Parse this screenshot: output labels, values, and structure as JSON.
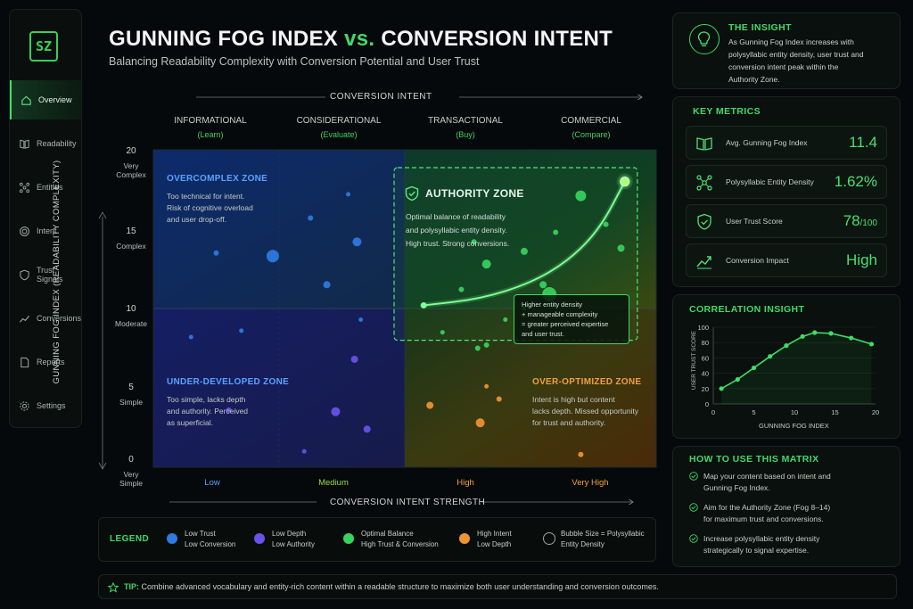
{
  "title": {
    "part1": "GUNNING FOG INDEX",
    "vs": "vs.",
    "part2": "CONVERSION INTENT"
  },
  "subtitle": "Balancing Readability Complexity with Conversion Potential and User Trust",
  "sidebar": {
    "logo": "SZ",
    "items": [
      {
        "label": "Overview",
        "icon": "home-icon",
        "active": true
      },
      {
        "label": "Readability",
        "icon": "book-icon"
      },
      {
        "label": "Entities",
        "icon": "nodes-icon"
      },
      {
        "label": "Intent",
        "icon": "target-icon"
      },
      {
        "label": "Trust Signals",
        "icon": "shield-icon"
      },
      {
        "label": "Conversions",
        "icon": "trend-icon"
      },
      {
        "label": "Reports",
        "icon": "document-icon"
      },
      {
        "label": "Settings",
        "icon": "gear-icon"
      }
    ]
  },
  "colors": {
    "accent": "#3fdc68",
    "blue": "#2e6fd6",
    "purple": "#6a4fe0",
    "green": "#39d35f",
    "orange": "#e58a2d"
  },
  "chart_data": {
    "type": "scatter",
    "x_title": "CONVERSION INTENT",
    "xlabel": "CONVERSION INTENT STRENGTH",
    "ylabel": "GUNNING FOG INDEX (READABILITY COMPLEXITY)",
    "intent_stages": [
      {
        "name": "INFORMATIONAL",
        "sub": "(Learn)"
      },
      {
        "name": "CONSIDERATIONAL",
        "sub": "(Evaluate)"
      },
      {
        "name": "TRANSACTIONAL",
        "sub": "(Buy)"
      },
      {
        "name": "COMMERCIAL",
        "sub": "(Compare)"
      }
    ],
    "x_ticks": [
      "Low",
      "Medium",
      "High",
      "Very High"
    ],
    "y_ticks": [
      {
        "value": 20,
        "label": "20",
        "sub": "Very\nComplex"
      },
      {
        "value": 15,
        "label": "15",
        "sub": "Complex"
      },
      {
        "value": 10,
        "label": "10",
        "sub": "Moderate"
      },
      {
        "value": 5,
        "label": "5",
        "sub": "Simple"
      },
      {
        "value": 0,
        "label": "0",
        "sub": "Very\nSimple"
      }
    ],
    "ylim": [
      0,
      20
    ],
    "xlim": [
      0,
      4
    ],
    "zones": {
      "overcomplex": {
        "title": "OVERCOMPLEX ZONE",
        "text": [
          "Too technical for intent.",
          "Risk of cognitive overload",
          "and user drop-off."
        ]
      },
      "authority": {
        "title": "AUTHORITY ZONE",
        "text": [
          "Optimal balance of readability",
          "and polysyllabic entity density.",
          "High trust. Strong conversions."
        ]
      },
      "underdeveloped": {
        "title": "UNDER-DEVELOPED ZONE",
        "text": [
          "Too simple, lacks depth",
          "and authority. Perceived",
          "as superficial."
        ]
      },
      "overoptimized": {
        "title": "OVER-OPTIMIZED ZONE",
        "text": [
          "Intent is high but content",
          "lacks depth. Missed opportunity",
          "for trust and authority."
        ]
      }
    },
    "callout": [
      "Higher entity density",
      "+ manageable complexity",
      "= greater perceived expertise",
      "and user trust."
    ],
    "trend_curve": [
      [
        2.15,
        10.2
      ],
      [
        2.6,
        10.6
      ],
      [
        3.0,
        11.6
      ],
      [
        3.3,
        13.0
      ],
      [
        3.55,
        15.0
      ],
      [
        3.75,
        18.0
      ]
    ],
    "points": [
      {
        "x": 0.5,
        "y": 13.5,
        "r": 3,
        "c": "blue"
      },
      {
        "x": 0.95,
        "y": 13.3,
        "r": 7,
        "c": "blue"
      },
      {
        "x": 1.25,
        "y": 15.7,
        "r": 3,
        "c": "blue"
      },
      {
        "x": 1.38,
        "y": 11.5,
        "r": 4,
        "c": "blue"
      },
      {
        "x": 1.55,
        "y": 17.2,
        "r": 2.5,
        "c": "blue"
      },
      {
        "x": 1.62,
        "y": 14.2,
        "r": 5,
        "c": "blue"
      },
      {
        "x": 0.3,
        "y": 8.2,
        "r": 2.5,
        "c": "blue"
      },
      {
        "x": 0.7,
        "y": 8.6,
        "r": 2.5,
        "c": "blue"
      },
      {
        "x": 1.65,
        "y": 9.3,
        "r": 2.5,
        "c": "blue"
      },
      {
        "x": 1.6,
        "y": 6.8,
        "r": 4,
        "c": "purple"
      },
      {
        "x": 0.6,
        "y": 3.6,
        "r": 3,
        "c": "purple"
      },
      {
        "x": 1.45,
        "y": 3.5,
        "r": 5,
        "c": "purple"
      },
      {
        "x": 1.7,
        "y": 2.4,
        "r": 4,
        "c": "purple"
      },
      {
        "x": 1.2,
        "y": 1.0,
        "r": 2.5,
        "c": "purple"
      },
      {
        "x": 2.65,
        "y": 12.8,
        "r": 5,
        "c": "green"
      },
      {
        "x": 2.45,
        "y": 11.2,
        "r": 3,
        "c": "green"
      },
      {
        "x": 2.55,
        "y": 14.2,
        "r": 3,
        "c": "green"
      },
      {
        "x": 2.8,
        "y": 9.3,
        "r": 2.5,
        "c": "green"
      },
      {
        "x": 2.3,
        "y": 8.5,
        "r": 2.5,
        "c": "green"
      },
      {
        "x": 2.65,
        "y": 7.7,
        "r": 3,
        "c": "green"
      },
      {
        "x": 2.95,
        "y": 13.6,
        "r": 4,
        "c": "green"
      },
      {
        "x": 3.1,
        "y": 11.5,
        "r": 4,
        "c": "green"
      },
      {
        "x": 3.2,
        "y": 14.8,
        "r": 3,
        "c": "green"
      },
      {
        "x": 3.4,
        "y": 17.1,
        "r": 6,
        "c": "green"
      },
      {
        "x": 3.72,
        "y": 13.8,
        "r": 4,
        "c": "green"
      },
      {
        "x": 3.6,
        "y": 15.3,
        "r": 3,
        "c": "green"
      },
      {
        "x": 3.15,
        "y": 10.9,
        "r": 8,
        "c": "green"
      },
      {
        "x": 2.58,
        "y": 7.5,
        "r": 3,
        "c": "green"
      },
      {
        "x": 2.75,
        "y": 4.3,
        "r": 3,
        "c": "orange"
      },
      {
        "x": 2.2,
        "y": 3.9,
        "r": 4,
        "c": "orange"
      },
      {
        "x": 2.6,
        "y": 2.8,
        "r": 5,
        "c": "orange"
      },
      {
        "x": 2.65,
        "y": 5.1,
        "r": 2.5,
        "c": "orange"
      },
      {
        "x": 3.4,
        "y": 0.8,
        "r": 3,
        "c": "orange"
      },
      {
        "x": 2.95,
        "y": 10.0,
        "r": 2.5,
        "c": "green"
      }
    ]
  },
  "insight": {
    "title": "THE INSIGHT",
    "lines": [
      "As Gunning Fog Index increases with",
      "polysyllabic entity density, user trust and",
      "conversion intent peak within the",
      "Authority Zone."
    ]
  },
  "metrics": {
    "title": "KEY METRICS",
    "items": [
      {
        "label": "Avg. Gunning Fog Index",
        "value": "11.4",
        "icon": "book-open-icon"
      },
      {
        "label": "Polysyllabic Entity Density",
        "value": "1.62%",
        "icon": "network-icon"
      },
      {
        "label": "User Trust Score",
        "value": "78",
        "suffix": "/100",
        "icon": "shield-check-icon"
      },
      {
        "label": "Conversion Impact",
        "value": "High",
        "icon": "trend-up-icon"
      }
    ]
  },
  "correlation": {
    "title": "CORRELATION INSIGHT",
    "chart_data": {
      "type": "line",
      "xlabel": "GUNNING FOG INDEX",
      "ylabel": "USER TRUST SCORE",
      "x_ticks": [
        0,
        5,
        10,
        15,
        20
      ],
      "y_ticks": [
        0,
        20,
        40,
        60,
        80,
        100
      ],
      "xlim": [
        0,
        20
      ],
      "ylim": [
        0,
        100
      ],
      "x": [
        1,
        3,
        5,
        7,
        9,
        11,
        12.5,
        14.5,
        17,
        19.5
      ],
      "values": [
        20,
        32,
        47,
        62,
        76,
        88,
        93,
        92,
        86,
        78
      ]
    }
  },
  "howto": {
    "title": "HOW TO USE THIS MATRIX",
    "items": [
      [
        "Map your content based on intent and",
        "Gunning Fog Index."
      ],
      [
        "Aim for the Authority Zone (Fog 8–14)",
        "for maximum trust and conversions."
      ],
      [
        "Increase polysyllabic entity density",
        "strategically to signal expertise."
      ]
    ]
  },
  "legend": {
    "title": "LEGEND",
    "items": [
      {
        "line1": "Low Trust",
        "line2": "Low Conversion",
        "color": "#2f7be0"
      },
      {
        "line1": "Low Depth",
        "line2": "Low Authority",
        "color": "#6a52e8"
      },
      {
        "line1": "Optimal Balance",
        "line2": "High Trust & Conversion",
        "color": "#38d35e"
      },
      {
        "line1": "High Intent",
        "line2": "Low Depth",
        "color": "#ee9533"
      },
      {
        "line1": "Bubble Size = Polysyllabic",
        "line2": "Entity Density",
        "color": ""
      }
    ]
  },
  "tip": {
    "label": "TIP:",
    "text": "Combine advanced vocabulary and entity-rich content within a readable structure to maximize both user understanding and conversion outcomes."
  }
}
